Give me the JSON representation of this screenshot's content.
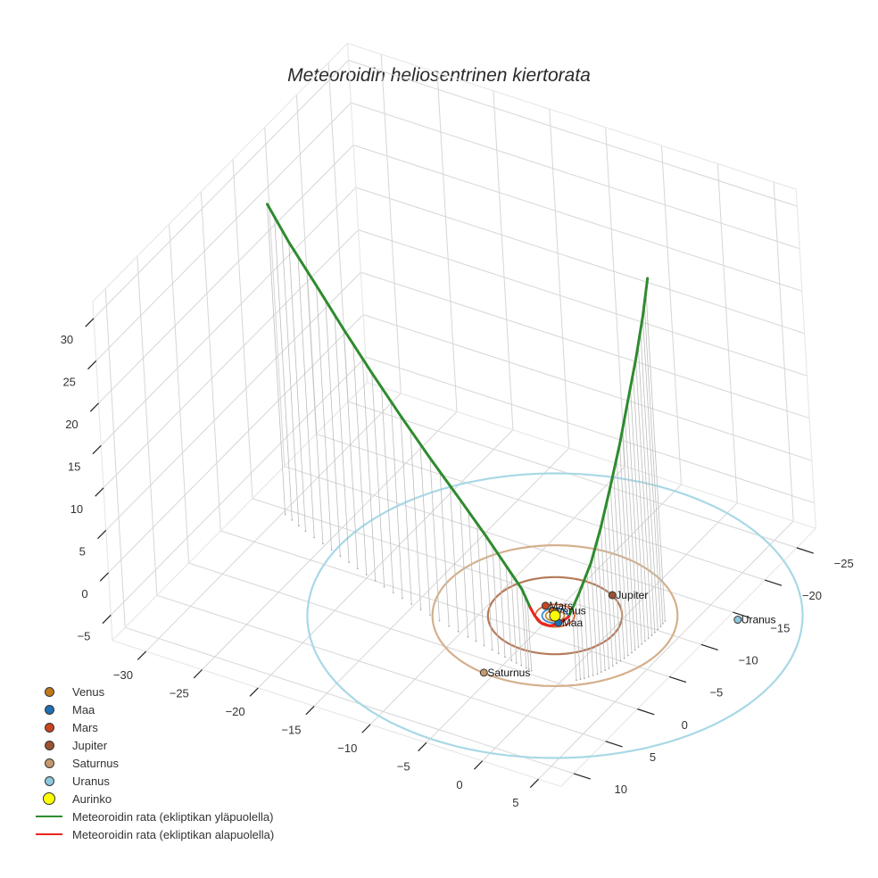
{
  "title": "Meteoroidin heliosentrinen kiertorata",
  "chart_data": {
    "type": "scatter3d",
    "title": "Meteoroidin heliosentrinen kiertorata",
    "axes": {
      "x": {
        "ticks": [
          -30,
          -25,
          -20,
          -15,
          -10,
          -5,
          0,
          5
        ],
        "range": [
          -33,
          7
        ]
      },
      "y": {
        "ticks": [
          -25,
          -20,
          -15,
          -10,
          -5,
          0,
          5,
          10
        ],
        "range": [
          -28,
          12
        ]
      },
      "z": {
        "ticks": [
          -5,
          0,
          5,
          10,
          15,
          20,
          25,
          30
        ],
        "range": [
          -8,
          32
        ]
      },
      "grid": true
    },
    "planets": [
      {
        "name": "Venus",
        "color": "#c07a1a",
        "orbit_radius": 0.72,
        "x": -0.5,
        "y": -0.5,
        "z": 0
      },
      {
        "name": "Maa",
        "color": "#1f6fb4",
        "orbit_radius": 1.0,
        "x": 0.7,
        "y": 0.7,
        "z": 0
      },
      {
        "name": "Mars",
        "color": "#c8451e",
        "orbit_radius": 1.52,
        "x": -1.3,
        "y": -0.8,
        "z": 0
      },
      {
        "name": "Jupiter",
        "color": "#9b5330",
        "orbit_radius": 5.2,
        "x": 2.5,
        "y": -4.6,
        "z": 0
      },
      {
        "name": "Saturnus",
        "color": "#c49a6c",
        "orbit_radius": 9.5,
        "x": -1.0,
        "y": 9.4,
        "z": 0
      },
      {
        "name": "Uranus",
        "color": "#8cc8de",
        "orbit_radius": 19.2,
        "x": 12.6,
        "y": -6.5,
        "z": 0
      },
      {
        "name": "Aurinko",
        "color": "#ffff00",
        "x": 0,
        "y": 0,
        "z": 0
      }
    ],
    "orbits": [
      {
        "name": "Venus",
        "radius": 0.72,
        "color": "#c98a3a"
      },
      {
        "name": "Maa",
        "radius": 1.0,
        "color": "#3b8ad0"
      },
      {
        "name": "Mars",
        "radius": 1.52,
        "color": "#d86a3a"
      },
      {
        "name": "Jupiter",
        "radius": 5.2,
        "color": "#b57a5a"
      },
      {
        "name": "Saturnus",
        "radius": 9.5,
        "color": "#d4b08c"
      },
      {
        "name": "Uranus",
        "radius": 19.2,
        "color": "#a8d8e6"
      }
    ],
    "trajectory_above": {
      "name": "Meteoroidin rata (ekliptikan yläpuolella)",
      "color": "#2e8b2e",
      "points": [
        [
          -29.5,
          -9.0,
          29.0
        ],
        [
          -27.0,
          -7.8,
          26.5
        ],
        [
          -24.0,
          -6.6,
          23.6
        ],
        [
          -21.0,
          -5.4,
          20.6
        ],
        [
          -18.0,
          -4.3,
          17.6
        ],
        [
          -15.0,
          -3.3,
          14.6
        ],
        [
          -12.0,
          -2.4,
          11.6
        ],
        [
          -9.0,
          -1.6,
          8.6
        ],
        [
          -6.5,
          -1.0,
          5.9
        ],
        [
          -4.5,
          -0.5,
          3.6
        ],
        [
          -3.0,
          -0.2,
          1.7
        ],
        [
          -2.2,
          0.0,
          0.0
        ]
      ],
      "points_b": [
        [
          1.0,
          -0.4,
          0.0
        ],
        [
          1.6,
          -1.2,
          2.5
        ],
        [
          2.2,
          -2.2,
          5.5
        ],
        [
          2.6,
          -3.3,
          9.0
        ],
        [
          2.9,
          -4.6,
          13.0
        ],
        [
          3.1,
          -6.0,
          17.0
        ],
        [
          3.2,
          -7.4,
          21.0
        ],
        [
          3.3,
          -8.8,
          25.0
        ],
        [
          3.3,
          -10.2,
          29.0
        ],
        [
          3.2,
          -11.4,
          32.5
        ]
      ]
    },
    "trajectory_below": {
      "name": "Meteoroidin rata (ekliptikan alapuolella)",
      "color": "#e8251f",
      "points": [
        [
          -2.2,
          0.0,
          0.0
        ],
        [
          -1.6,
          0.4,
          -0.4
        ],
        [
          -0.8,
          0.8,
          -0.6
        ],
        [
          0.0,
          0.9,
          -0.5
        ],
        [
          0.6,
          0.6,
          -0.3
        ],
        [
          1.0,
          -0.4,
          0.0
        ]
      ]
    }
  },
  "legend": {
    "items": [
      {
        "label": "Venus",
        "type": "dot",
        "color": "#c07a1a"
      },
      {
        "label": "Maa",
        "type": "dot",
        "color": "#1f6fb4"
      },
      {
        "label": "Mars",
        "type": "dot",
        "color": "#c8451e"
      },
      {
        "label": "Jupiter",
        "type": "dot",
        "color": "#9b5330"
      },
      {
        "label": "Saturnus",
        "type": "dot",
        "color": "#c49a6c"
      },
      {
        "label": "Uranus",
        "type": "dot",
        "color": "#8cc8de"
      },
      {
        "label": "Aurinko",
        "type": "bigdot",
        "color": "#ffff00"
      },
      {
        "label": "Meteoroidin rata (ekliptikan yläpuolella)",
        "type": "line",
        "color": "#2e8b2e"
      },
      {
        "label": "Meteoroidin rata (ekliptikan alapuolella)",
        "type": "line",
        "color": "#e8251f"
      }
    ]
  }
}
